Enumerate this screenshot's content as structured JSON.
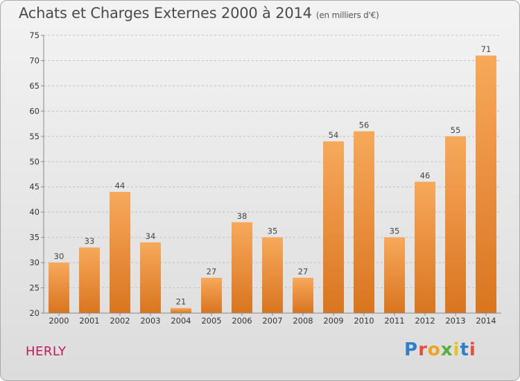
{
  "title": "Achats et Charges Externes 2000 à 2014",
  "subtitle": "(en milliers d'€)",
  "town": "HERLY",
  "logo": {
    "text": "Proxiti",
    "letter_colors": [
      "#2e7fc9",
      "#e84c3d",
      "#f0a21c",
      "#56b03c",
      "#e8c21c",
      "#2e7fc9",
      "#e84c3d"
    ]
  },
  "colors": {
    "bar_top": "#f7a95b",
    "bar_bottom": "#d9751f",
    "grid": "#bfbfbf",
    "axis": "#888888"
  },
  "chart_data": {
    "type": "bar",
    "categories": [
      "2000",
      "2001",
      "2002",
      "2003",
      "2004",
      "2005",
      "2006",
      "2007",
      "2008",
      "2009",
      "2010",
      "2011",
      "2012",
      "2013",
      "2014"
    ],
    "values": [
      30,
      33,
      44,
      34,
      21,
      27,
      38,
      35,
      27,
      54,
      56,
      35,
      46,
      55,
      71
    ],
    "title": "Achats et Charges Externes 2000 à 2014",
    "subtitle": "(en milliers d'€)",
    "xlabel": "",
    "ylabel": "",
    "ylim": [
      20,
      75
    ],
    "yticks": [
      20,
      25,
      30,
      35,
      40,
      45,
      50,
      55,
      60,
      65,
      70,
      75
    ],
    "grid": "horizontal-dashed",
    "legend": "none"
  }
}
